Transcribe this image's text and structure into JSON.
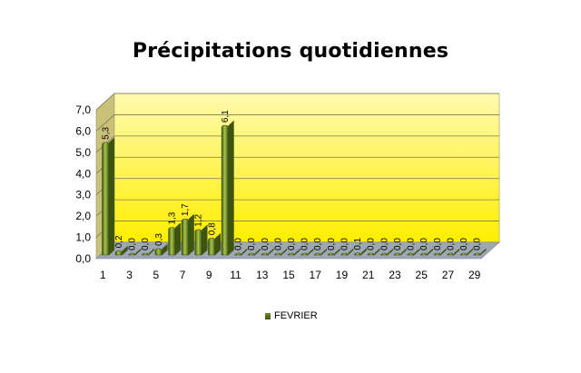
{
  "chart_data": {
    "type": "bar",
    "title": "Précipitations quotidiennes",
    "xlabel": "",
    "ylabel": "",
    "ylim": [
      0,
      7
    ],
    "yticks": [
      "0,0",
      "1,0",
      "2,0",
      "3,0",
      "4,0",
      "5,0",
      "6,0",
      "7,0"
    ],
    "categories": [
      1,
      2,
      3,
      4,
      5,
      6,
      7,
      8,
      9,
      10,
      11,
      12,
      13,
      14,
      15,
      16,
      17,
      18,
      19,
      20,
      21,
      22,
      23,
      24,
      25,
      26,
      27,
      28,
      29
    ],
    "xtick_labels": [
      "1",
      "3",
      "5",
      "7",
      "9",
      "11",
      "13",
      "15",
      "17",
      "19",
      "21",
      "23",
      "25",
      "27",
      "29"
    ],
    "series": [
      {
        "name": "FEVRIER",
        "values": [
          5.3,
          0.2,
          0.0,
          0.0,
          0.3,
          1.3,
          1.7,
          1.2,
          0.8,
          6.1,
          0.0,
          0.0,
          0.0,
          0.0,
          0.0,
          0.0,
          0.0,
          0.0,
          0.0,
          0.1,
          0.0,
          0.0,
          0.0,
          0.0,
          0.0,
          0.0,
          0.0,
          0.0,
          0.0
        ],
        "value_labels": [
          "5,3",
          "0,2",
          "0,0",
          "0,0",
          "0,3",
          "1,3",
          "1,7",
          "1,2",
          "0,8",
          "6,1",
          "0,0",
          "0,0",
          "0,0",
          "0,0",
          "0,0",
          "0,0",
          "0,0",
          "0,0",
          "0,0",
          "0,1",
          "0,0",
          "0,0",
          "0,0",
          "0,0",
          "0,0",
          "0,0",
          "0,0",
          "0,0",
          "0,0"
        ]
      }
    ],
    "grid": true,
    "legend": "bottom",
    "colors": {
      "bar": "#6b8a1e",
      "bar_dark": "#3d5310",
      "bar_light": "#a9c64a",
      "wall_top": "#fffab0",
      "wall_bottom": "#ffee00",
      "floor": "#9ea7b4"
    }
  }
}
